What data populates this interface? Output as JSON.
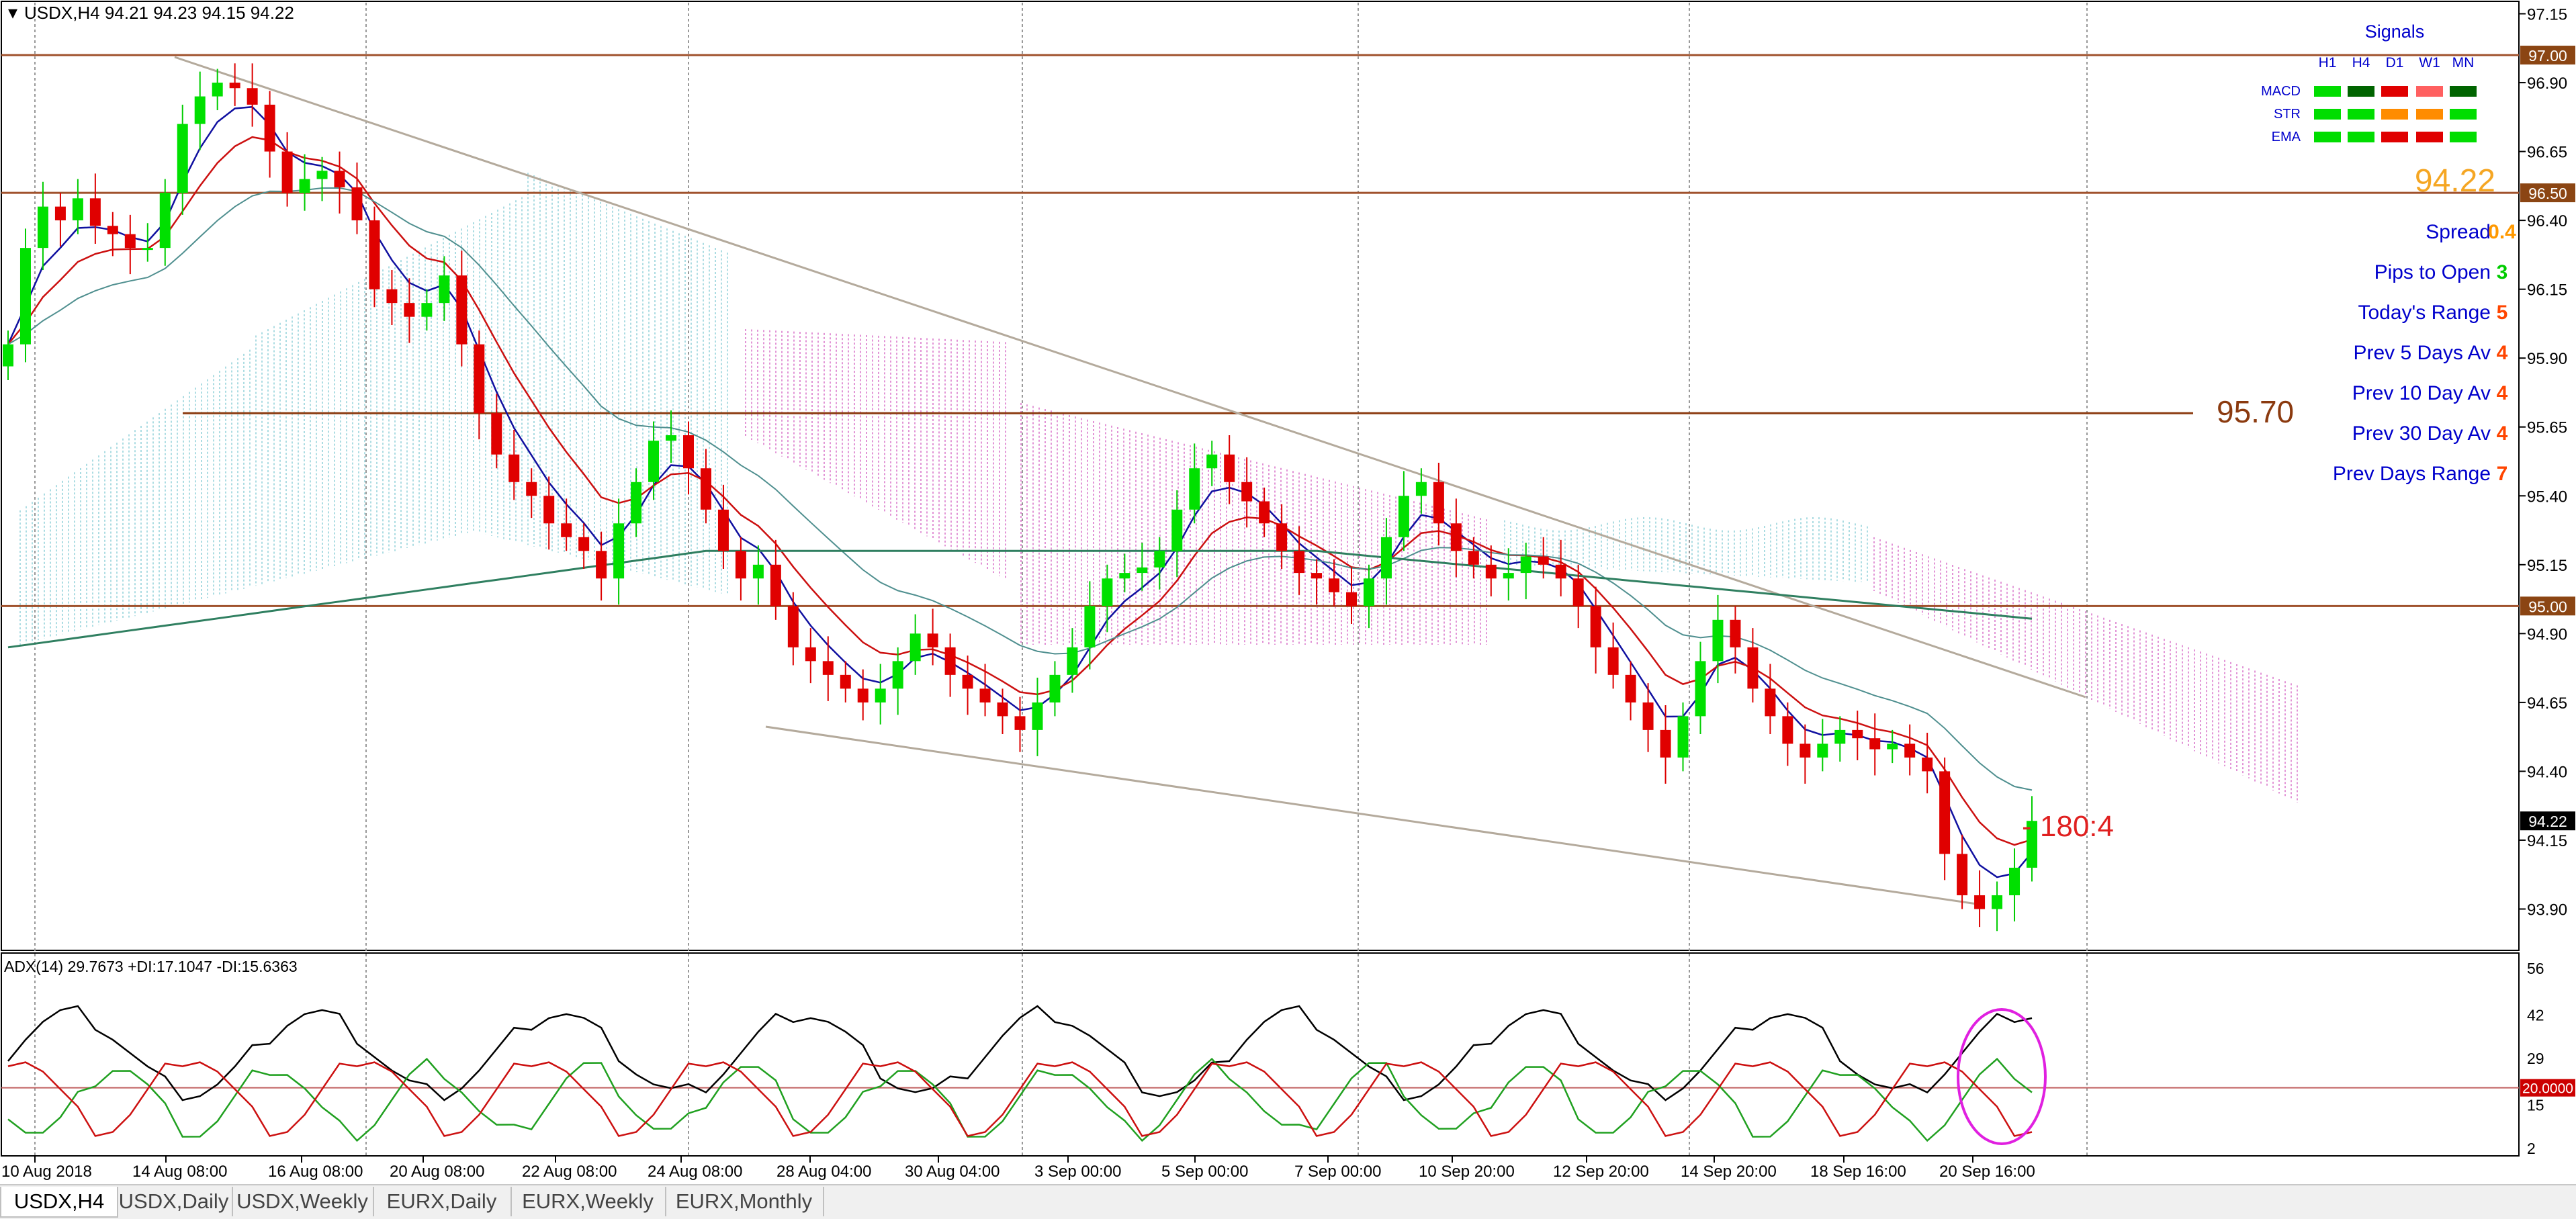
{
  "window": {
    "symbol_header": "USDX,H4  94.21 94.23 94.15 94.22"
  },
  "price_scale": {
    "ticks": [
      "97.15",
      "96.90",
      "96.65",
      "96.40",
      "96.15",
      "95.90",
      "95.65",
      "95.40",
      "95.15",
      "94.90",
      "94.65",
      "94.40",
      "94.15",
      "93.90"
    ],
    "badges": [
      {
        "label": "97.00",
        "price": 97.0,
        "color": "#8b4513"
      },
      {
        "label": "96.50",
        "price": 96.5,
        "color": "#8b4513"
      },
      {
        "label": "95.00",
        "price": 95.0,
        "color": "#8b4513"
      },
      {
        "label": "94.22",
        "price": 94.22,
        "color": "#000000"
      }
    ]
  },
  "horizontal_levels": [
    {
      "price": 97.0,
      "color": "#a0522d"
    },
    {
      "price": 96.5,
      "color": "#a0522d"
    },
    {
      "price": 95.0,
      "color": "#a0522d"
    },
    {
      "price": 95.7,
      "color": "#8b3a0f",
      "label": "95.70"
    }
  ],
  "current_price_label": "94.22",
  "signals_panel": {
    "title": "Signals",
    "columns": [
      "H1",
      "H4",
      "D1",
      "W1",
      "MN"
    ],
    "rows": [
      {
        "name": "MACD",
        "colors": [
          "#00dd00",
          "#006400",
          "#e00000",
          "#ff6060",
          "#006400"
        ]
      },
      {
        "name": "STR",
        "colors": [
          "#00dd00",
          "#00dd00",
          "#ff8c00",
          "#ff8c00",
          "#00dd00"
        ]
      },
      {
        "name": "EMA",
        "colors": [
          "#00dd00",
          "#00dd00",
          "#e00000",
          "#e00000",
          "#00dd00"
        ]
      }
    ]
  },
  "stats": [
    {
      "label": "Spread",
      "value": "0.4",
      "value_color": "#ff9900"
    },
    {
      "label": "Pips to Open",
      "value": "3",
      "value_color": "#00cc00"
    },
    {
      "label": "Today's Range",
      "value": "5",
      "value_color": "#ff4500"
    },
    {
      "label": "Prev 5 Days Av",
      "value": "4",
      "value_color": "#ff4500"
    },
    {
      "label": "Prev 10 Day Av",
      "value": "4",
      "value_color": "#ff4500"
    },
    {
      "label": "Prev 30 Day Av",
      "value": "4",
      "value_color": "#ff4500"
    },
    {
      "label": "Prev Days Range",
      "value": "7",
      "value_color": "#ff4500"
    }
  ],
  "annotation": "- 180:4",
  "adx": {
    "header": "ADX(14) 29.7673 +DI:17.1047 -DI:15.6363",
    "ticks": [
      "56",
      "42",
      "29",
      "20.0000",
      "15",
      "2"
    ],
    "level": "20.0000"
  },
  "time_axis": [
    "10 Aug 2018",
    "14 Aug 08:00",
    "16 Aug 08:00",
    "20 Aug 08:00",
    "22 Aug 08:00",
    "24 Aug 08:00",
    "28 Aug 04:00",
    "30 Aug 04:00",
    "3 Sep 00:00",
    "5 Sep 00:00",
    "7 Sep 00:00",
    "10 Sep 20:00",
    "12 Sep 20:00",
    "14 Sep 20:00",
    "18 Sep 16:00",
    "20 Sep 16:00"
  ],
  "tabs": [
    {
      "label": "USDX,H4",
      "active": true
    },
    {
      "label": "USDX,Daily",
      "active": false
    },
    {
      "label": "USDX,Weekly",
      "active": false
    },
    {
      "label": "EURX,Daily",
      "active": false
    },
    {
      "label": "EURX,Weekly",
      "active": false
    },
    {
      "label": "EURX,Monthly",
      "active": false
    }
  ],
  "chart_data": {
    "type": "candlestick",
    "y_range": [
      93.75,
      97.2
    ],
    "adx_range": [
      0,
      60
    ],
    "closes": [
      95.95,
      96.3,
      96.45,
      96.4,
      96.48,
      96.38,
      96.35,
      96.3,
      96.3,
      96.5,
      96.75,
      96.85,
      96.9,
      96.88,
      96.82,
      96.65,
      96.5,
      96.55,
      96.58,
      96.52,
      96.4,
      96.15,
      96.1,
      96.05,
      96.1,
      96.2,
      95.95,
      95.7,
      95.55,
      95.45,
      95.4,
      95.3,
      95.25,
      95.2,
      95.1,
      95.3,
      95.45,
      95.6,
      95.62,
      95.5,
      95.35,
      95.2,
      95.1,
      95.15,
      95.0,
      94.85,
      94.8,
      94.75,
      94.7,
      94.65,
      94.7,
      94.8,
      94.9,
      94.85,
      94.75,
      94.7,
      94.65,
      94.6,
      94.55,
      94.65,
      94.75,
      94.85,
      95.0,
      95.1,
      95.12,
      95.14,
      95.2,
      95.35,
      95.5,
      95.55,
      95.45,
      95.38,
      95.3,
      95.2,
      95.12,
      95.1,
      95.05,
      95.0,
      95.1,
      95.25,
      95.4,
      95.45,
      95.3,
      95.2,
      95.15,
      95.1,
      95.12,
      95.18,
      95.15,
      95.1,
      95.0,
      94.85,
      94.75,
      94.65,
      94.55,
      94.45,
      94.6,
      94.8,
      94.95,
      94.85,
      94.7,
      94.6,
      94.5,
      94.45,
      94.5,
      94.55,
      94.52,
      94.48,
      94.5,
      94.45,
      94.4,
      94.1,
      93.95,
      93.9,
      93.95,
      94.05,
      94.22
    ],
    "adx_series": [
      {
        "name": "ADX",
        "color": "#000000"
      },
      {
        "name": "+DI",
        "color": "#00aa00"
      },
      {
        "name": "-DI",
        "color": "#cc0000"
      }
    ]
  }
}
